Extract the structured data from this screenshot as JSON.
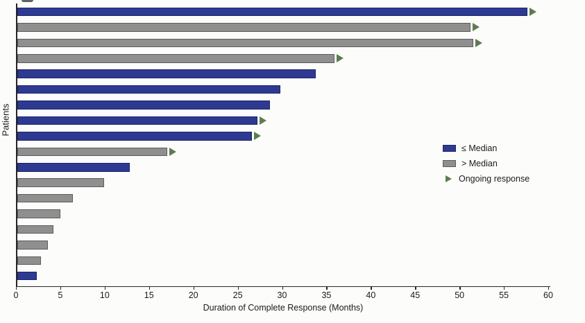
{
  "chart_data": {
    "type": "bar",
    "orientation": "horizontal",
    "title": "",
    "xlabel": "Duration of Complete Response (Months)",
    "ylabel": "Patients",
    "xlim": [
      0,
      60
    ],
    "xticks": [
      0,
      5,
      10,
      15,
      20,
      25,
      30,
      35,
      40,
      45,
      50,
      55,
      60
    ],
    "grid": false,
    "background": "#fcfdfa",
    "legend": {
      "position": "middle-right",
      "entries": [
        {
          "label": "≤ Median",
          "marker": "swatch",
          "group": "le_median",
          "fill": "#2e3a92",
          "edge": "#1c2566"
        },
        {
          "label": "> Median",
          "marker": "swatch",
          "group": "gt_median",
          "fill": "#8f8f8f",
          "edge": "#5c5c5c"
        },
        {
          "label": "Ongoing response",
          "marker": "arrow",
          "group": "ongoing",
          "fill": "#5d7c52"
        }
      ]
    },
    "bars": [
      {
        "patient": 1,
        "months": 57.5,
        "group": "le_median",
        "ongoing": true
      },
      {
        "patient": 2,
        "months": 51.1,
        "group": "gt_median",
        "ongoing": true
      },
      {
        "patient": 3,
        "months": 51.4,
        "group": "gt_median",
        "ongoing": true
      },
      {
        "patient": 4,
        "months": 35.8,
        "group": "gt_median",
        "ongoing": true
      },
      {
        "patient": 5,
        "months": 33.7,
        "group": "le_median",
        "ongoing": false
      },
      {
        "patient": 6,
        "months": 29.7,
        "group": "le_median",
        "ongoing": false
      },
      {
        "patient": 7,
        "months": 28.5,
        "group": "le_median",
        "ongoing": false
      },
      {
        "patient": 8,
        "months": 27.1,
        "group": "le_median",
        "ongoing": true
      },
      {
        "patient": 9,
        "months": 26.5,
        "group": "le_median",
        "ongoing": true
      },
      {
        "patient": 10,
        "months": 16.9,
        "group": "gt_median",
        "ongoing": true
      },
      {
        "patient": 11,
        "months": 12.7,
        "group": "le_median",
        "ongoing": false
      },
      {
        "patient": 12,
        "months": 9.8,
        "group": "gt_median",
        "ongoing": false
      },
      {
        "patient": 13,
        "months": 6.3,
        "group": "gt_median",
        "ongoing": false
      },
      {
        "patient": 14,
        "months": 4.9,
        "group": "gt_median",
        "ongoing": false
      },
      {
        "patient": 15,
        "months": 4.1,
        "group": "gt_median",
        "ongoing": false
      },
      {
        "patient": 16,
        "months": 3.5,
        "group": "gt_median",
        "ongoing": false
      },
      {
        "patient": 17,
        "months": 2.7,
        "group": "gt_median",
        "ongoing": false
      },
      {
        "patient": 18,
        "months": 2.2,
        "group": "le_median",
        "ongoing": false
      }
    ]
  }
}
